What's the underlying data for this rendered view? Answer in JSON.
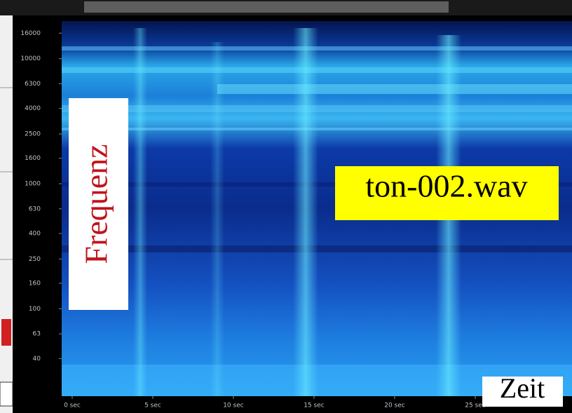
{
  "chart_data": {
    "type": "spectrogram",
    "annotations": [
      "Frequenz",
      "ton-002.wav",
      "Zeit"
    ],
    "log_y": true,
    "ylim": [
      20,
      20000
    ],
    "yticks": [
      40,
      63,
      100,
      160,
      250,
      400,
      630,
      1000,
      1600,
      2500,
      4000,
      6300,
      10000,
      16000
    ],
    "xlim": [
      -0.65,
      31
    ],
    "xticks": [
      {
        "value": 0,
        "label": "0 sec"
      },
      {
        "value": 5,
        "label": "5 sec"
      },
      {
        "value": 10,
        "label": "10 sec"
      },
      {
        "value": 15,
        "label": "15 sec"
      },
      {
        "value": 20,
        "label": "20 sec"
      },
      {
        "value": 25,
        "label": "25 sec"
      }
    ]
  }
}
